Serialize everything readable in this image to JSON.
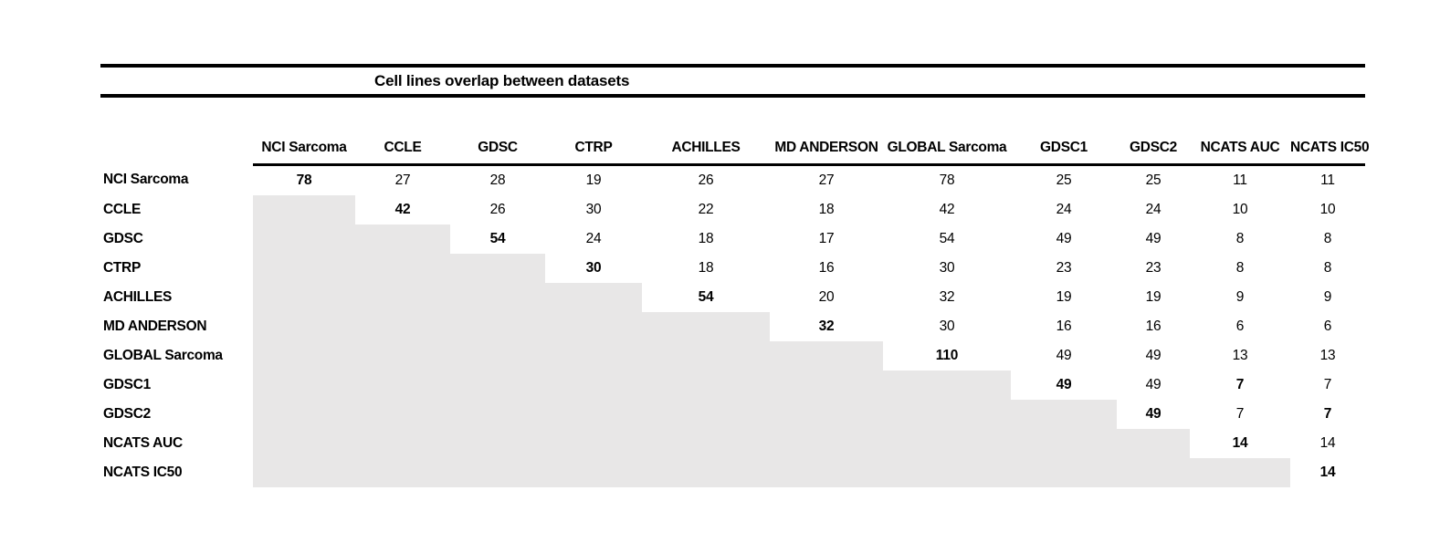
{
  "colors": {
    "shading": "#e8e7e7",
    "text": "#000000",
    "background": "#ffffff",
    "rule": "#000000"
  },
  "chart_data": {
    "type": "table",
    "title": "Cell lines overlap between datasets",
    "columns": [
      "NCI Sarcoma",
      "CCLE",
      "GDSC",
      "CTRP",
      "ACHILLES",
      "MD ANDERSON",
      "GLOBAL Sarcoma",
      "GDSC1",
      "GDSC2",
      "NCATS AUC",
      "NCATS IC50"
    ],
    "layout_hints": "Upper-triangular matrix; lower triangle is shaded gray with no values; diagonal counts are bold",
    "rows": [
      {
        "label": "NCI Sarcoma",
        "cells": [
          {
            "v": "78",
            "bold": true
          },
          {
            "v": "27"
          },
          {
            "v": "28"
          },
          {
            "v": "19"
          },
          {
            "v": "26"
          },
          {
            "v": "27"
          },
          {
            "v": "78"
          },
          {
            "v": "25"
          },
          {
            "v": "25"
          },
          {
            "v": "11"
          },
          {
            "v": "11"
          }
        ]
      },
      {
        "label": "CCLE",
        "cells": [
          null,
          {
            "v": "42",
            "bold": true
          },
          {
            "v": "26"
          },
          {
            "v": "30"
          },
          {
            "v": "22"
          },
          {
            "v": "18"
          },
          {
            "v": "42"
          },
          {
            "v": "24"
          },
          {
            "v": "24"
          },
          {
            "v": "10"
          },
          {
            "v": "10"
          }
        ]
      },
      {
        "label": "GDSC",
        "cells": [
          null,
          null,
          {
            "v": "54",
            "bold": true
          },
          {
            "v": "24"
          },
          {
            "v": "18"
          },
          {
            "v": "17"
          },
          {
            "v": "54"
          },
          {
            "v": "49"
          },
          {
            "v": "49"
          },
          {
            "v": "8"
          },
          {
            "v": "8"
          }
        ]
      },
      {
        "label": "CTRP",
        "cells": [
          null,
          null,
          null,
          {
            "v": "30",
            "bold": true
          },
          {
            "v": "18"
          },
          {
            "v": "16"
          },
          {
            "v": "30"
          },
          {
            "v": "23"
          },
          {
            "v": "23"
          },
          {
            "v": "8"
          },
          {
            "v": "8"
          }
        ]
      },
      {
        "label": "ACHILLES",
        "cells": [
          null,
          null,
          null,
          null,
          {
            "v": "54",
            "bold": true
          },
          {
            "v": "20"
          },
          {
            "v": "32"
          },
          {
            "v": "19"
          },
          {
            "v": "19"
          },
          {
            "v": "9"
          },
          {
            "v": "9"
          }
        ]
      },
      {
        "label": "MD ANDERSON",
        "cells": [
          null,
          null,
          null,
          null,
          null,
          {
            "v": "32",
            "bold": true
          },
          {
            "v": "30"
          },
          {
            "v": "16"
          },
          {
            "v": "16"
          },
          {
            "v": "6"
          },
          {
            "v": "6"
          }
        ]
      },
      {
        "label": "GLOBAL Sarcoma",
        "cells": [
          null,
          null,
          null,
          null,
          null,
          null,
          {
            "v": "110",
            "bold": true
          },
          {
            "v": "49"
          },
          {
            "v": "49"
          },
          {
            "v": "13"
          },
          {
            "v": "13"
          }
        ]
      },
      {
        "label": "GDSC1",
        "cells": [
          null,
          null,
          null,
          null,
          null,
          null,
          null,
          {
            "v": "49",
            "bold": true
          },
          {
            "v": "49"
          },
          {
            "v": "7",
            "bold": true
          },
          {
            "v": "7"
          }
        ]
      },
      {
        "label": "GDSC2",
        "cells": [
          null,
          null,
          null,
          null,
          null,
          null,
          null,
          null,
          {
            "v": "49",
            "bold": true
          },
          {
            "v": "7"
          },
          {
            "v": "7",
            "bold": true
          }
        ]
      },
      {
        "label": "NCATS AUC",
        "cells": [
          null,
          null,
          null,
          null,
          null,
          null,
          null,
          null,
          null,
          {
            "v": "14",
            "bold": true
          },
          {
            "v": "14"
          }
        ]
      },
      {
        "label": "NCATS IC50",
        "cells": [
          null,
          null,
          null,
          null,
          null,
          null,
          null,
          null,
          null,
          null,
          {
            "v": "14",
            "bold": true
          }
        ]
      }
    ]
  }
}
